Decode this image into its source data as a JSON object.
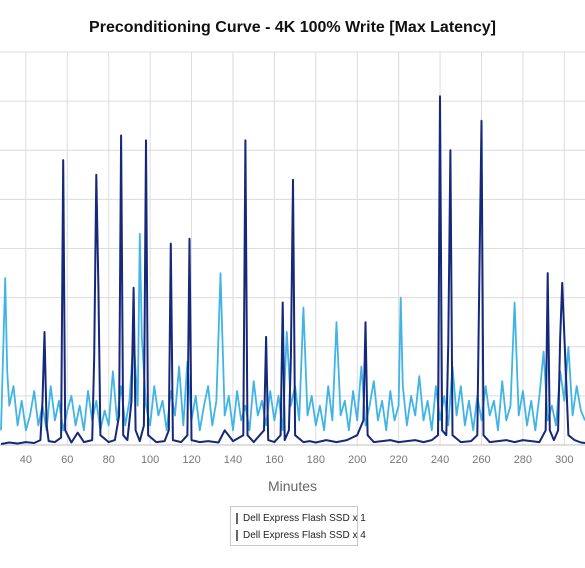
{
  "chart_data": {
    "type": "line",
    "title": "Preconditioning Curve - 4K 100% Write [Max Latency]",
    "xlabel": "Minutes",
    "ylabel": "",
    "x_ticks": [
      40,
      60,
      80,
      100,
      120,
      140,
      160,
      180,
      200,
      220,
      240,
      260,
      280,
      300
    ],
    "xlim": [
      27.5,
      310
    ],
    "ylim": [
      0,
      8
    ],
    "y_gridlines": [
      1,
      2,
      3,
      4,
      5,
      6,
      7,
      8
    ],
    "y_tick_labels_visible": false,
    "grid": true,
    "legend_position": "bottom-center",
    "series": [
      {
        "name": "Dell Express Flash SSD x 1",
        "color": "#15287a",
        "x": [
          28,
          32,
          36,
          40,
          44,
          47,
          48,
          49,
          50,
          51,
          54,
          57,
          58,
          59,
          62,
          65,
          68,
          72,
          73,
          74,
          75,
          76,
          80,
          83,
          85,
          86,
          87,
          89,
          91,
          92,
          93,
          95,
          97,
          98,
          99,
          103,
          107,
          109,
          110,
          111,
          115,
          118,
          119,
          120,
          124,
          128,
          133,
          136,
          140,
          145,
          146,
          147,
          150,
          155,
          156,
          157,
          160,
          163,
          164,
          165,
          167,
          168,
          169,
          170,
          174,
          177,
          180,
          185,
          190,
          195,
          200,
          203,
          204,
          205,
          208,
          212,
          216,
          220,
          224,
          228,
          232,
          236,
          239,
          240,
          241,
          243,
          244,
          245,
          246,
          250,
          255,
          258,
          259,
          260,
          261,
          264,
          268,
          272,
          276,
          280,
          284,
          288,
          291,
          292,
          293,
          295,
          297,
          298,
          299,
          302,
          305,
          308,
          310
        ],
        "values": [
          0.02,
          0.05,
          0.03,
          0.06,
          0.04,
          0.1,
          0.9,
          2.3,
          0.4,
          0.08,
          0.06,
          0.15,
          5.8,
          0.3,
          0.05,
          0.25,
          0.06,
          0.1,
          1.8,
          5.5,
          3.2,
          0.2,
          0.06,
          0.1,
          0.6,
          6.3,
          0.2,
          0.1,
          0.9,
          3.2,
          0.3,
          0.08,
          0.4,
          6.2,
          0.2,
          0.06,
          0.08,
          0.3,
          4.1,
          0.1,
          0.06,
          0.2,
          4.2,
          0.1,
          0.06,
          0.08,
          0.05,
          0.3,
          0.08,
          0.2,
          6.2,
          0.2,
          0.06,
          0.3,
          2.2,
          0.1,
          0.06,
          0.2,
          2.9,
          0.1,
          0.3,
          1.8,
          5.4,
          0.2,
          0.06,
          0.08,
          0.05,
          0.1,
          0.06,
          0.1,
          0.2,
          0.5,
          2.5,
          0.2,
          0.06,
          0.08,
          0.1,
          0.06,
          0.08,
          0.1,
          0.06,
          0.1,
          0.2,
          7.1,
          0.3,
          0.2,
          2.1,
          6.0,
          0.2,
          0.06,
          0.08,
          0.2,
          3.5,
          6.6,
          0.2,
          0.06,
          0.08,
          0.1,
          0.06,
          0.1,
          0.08,
          0.06,
          0.3,
          3.5,
          0.3,
          0.1,
          0.3,
          2.2,
          3.3,
          0.2,
          0.1,
          0.05,
          0.04
        ]
      },
      {
        "name": "Dell Express Flash SSD x 4",
        "color": "#41b4e6",
        "x": [
          28,
          30,
          31,
          32,
          34,
          36,
          38,
          40,
          42,
          44,
          46,
          48,
          50,
          52,
          54,
          56,
          58,
          60,
          62,
          64,
          66,
          68,
          70,
          72,
          74,
          76,
          78,
          80,
          82,
          84,
          86,
          88,
          90,
          92,
          93,
          94,
          95,
          96,
          98,
          100,
          102,
          104,
          106,
          108,
          110,
          112,
          114,
          116,
          118,
          120,
          122,
          124,
          126,
          128,
          130,
          132,
          134,
          136,
          138,
          140,
          142,
          144,
          146,
          148,
          150,
          152,
          154,
          156,
          158,
          160,
          162,
          164,
          166,
          168,
          170,
          172,
          174,
          176,
          178,
          180,
          182,
          184,
          186,
          188,
          190,
          192,
          194,
          196,
          198,
          200,
          202,
          204,
          206,
          208,
          210,
          212,
          214,
          216,
          218,
          220,
          221,
          222,
          224,
          226,
          228,
          230,
          232,
          234,
          236,
          238,
          240,
          242,
          244,
          246,
          248,
          250,
          252,
          254,
          256,
          258,
          260,
          262,
          264,
          266,
          268,
          270,
          272,
          274,
          276,
          278,
          280,
          282,
          284,
          286,
          288,
          290,
          292,
          294,
          296,
          298,
          300,
          302,
          304,
          306,
          308,
          310
        ],
        "values": [
          0.3,
          3.4,
          1.5,
          0.8,
          1.2,
          0.4,
          0.9,
          0.3,
          0.6,
          1.1,
          0.4,
          0.8,
          0.3,
          1.2,
          0.5,
          0.9,
          0.3,
          0.7,
          1.0,
          0.4,
          0.8,
          0.3,
          1.1,
          0.5,
          0.9,
          0.3,
          0.7,
          0.4,
          1.5,
          0.5,
          1.2,
          0.4,
          0.9,
          2.2,
          1.5,
          0.8,
          4.3,
          2.2,
          0.8,
          0.4,
          1.2,
          0.6,
          0.9,
          0.3,
          1.1,
          0.6,
          1.6,
          0.4,
          1.7,
          0.5,
          1.0,
          0.3,
          0.8,
          1.2,
          0.4,
          0.9,
          3.5,
          0.6,
          1.0,
          0.3,
          1.1,
          0.5,
          0.8,
          0.3,
          1.3,
          0.6,
          0.9,
          0.4,
          1.1,
          0.5,
          1.0,
          0.3,
          2.3,
          0.8,
          1.2,
          0.5,
          2.8,
          0.6,
          1.0,
          0.4,
          0.8,
          0.3,
          1.2,
          0.5,
          2.5,
          0.6,
          0.9,
          0.3,
          1.1,
          0.5,
          1.6,
          0.4,
          0.8,
          1.3,
          0.5,
          0.9,
          0.3,
          1.1,
          0.5,
          0.8,
          3.0,
          1.2,
          0.4,
          1.0,
          0.6,
          1.4,
          0.5,
          0.9,
          0.3,
          1.2,
          0.5,
          1.0,
          0.4,
          1.6,
          0.6,
          1.2,
          0.4,
          0.9,
          0.3,
          1.0,
          0.5,
          1.2,
          0.6,
          0.9,
          0.3,
          1.3,
          0.5,
          0.8,
          2.9,
          0.6,
          1.1,
          0.4,
          0.9,
          0.3,
          1.0,
          1.9,
          0.5,
          0.8,
          0.4,
          1.5,
          0.9,
          2.0,
          0.6,
          1.2,
          0.7,
          0.5
        ]
      }
    ]
  }
}
